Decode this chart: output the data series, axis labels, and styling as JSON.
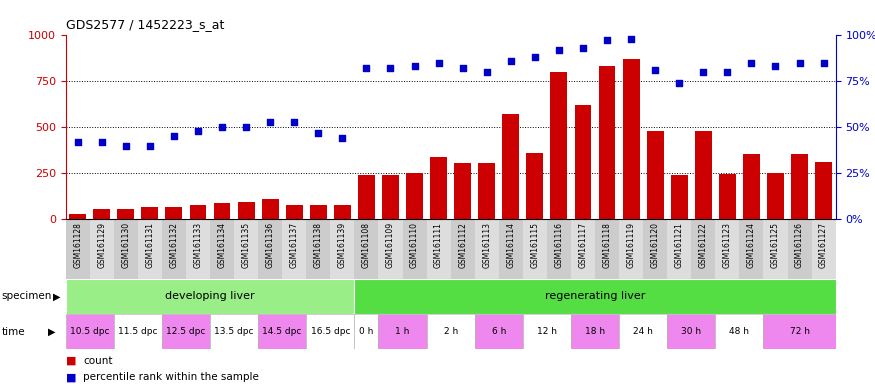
{
  "title": "GDS2577 / 1452223_s_at",
  "samples": [
    "GSM161128",
    "GSM161129",
    "GSM161130",
    "GSM161131",
    "GSM161132",
    "GSM161133",
    "GSM161134",
    "GSM161135",
    "GSM161136",
    "GSM161137",
    "GSM161138",
    "GSM161139",
    "GSM161108",
    "GSM161109",
    "GSM161110",
    "GSM161111",
    "GSM161112",
    "GSM161113",
    "GSM161114",
    "GSM161115",
    "GSM161116",
    "GSM161117",
    "GSM161118",
    "GSM161119",
    "GSM161120",
    "GSM161121",
    "GSM161122",
    "GSM161123",
    "GSM161124",
    "GSM161125",
    "GSM161126",
    "GSM161127"
  ],
  "bar_values": [
    30,
    55,
    55,
    65,
    65,
    80,
    90,
    95,
    110,
    75,
    75,
    75,
    240,
    240,
    250,
    340,
    305,
    305,
    570,
    360,
    800,
    620,
    830,
    870,
    480,
    240,
    480,
    245,
    355,
    250,
    355,
    310
  ],
  "dot_values": [
    42,
    42,
    40,
    40,
    45,
    48,
    50,
    50,
    53,
    53,
    47,
    44,
    82,
    82,
    83,
    85,
    82,
    80,
    86,
    88,
    92,
    93,
    97,
    98,
    81,
    74,
    80,
    80,
    85,
    83,
    85,
    85
  ],
  "bar_color": "#cc0000",
  "dot_color": "#0000cc",
  "ylim_left": [
    0,
    1000
  ],
  "ylim_right": [
    0,
    100
  ],
  "yticks_left": [
    0,
    250,
    500,
    750,
    1000
  ],
  "yticks_right": [
    0,
    25,
    50,
    75,
    100
  ],
  "background_color": "#ffffff",
  "specimen_groups": [
    {
      "label": "developing liver",
      "start": 0,
      "end": 12,
      "color": "#99ee88"
    },
    {
      "label": "regenerating liver",
      "start": 12,
      "end": 32,
      "color": "#55dd44"
    }
  ],
  "time_spans": [
    {
      "label": "10.5 dpc",
      "start": 0,
      "end": 2,
      "color": "#ee88ee"
    },
    {
      "label": "11.5 dpc",
      "start": 2,
      "end": 4,
      "color": "#ffffff"
    },
    {
      "label": "12.5 dpc",
      "start": 4,
      "end": 6,
      "color": "#ee88ee"
    },
    {
      "label": "13.5 dpc",
      "start": 6,
      "end": 8,
      "color": "#ffffff"
    },
    {
      "label": "14.5 dpc",
      "start": 8,
      "end": 10,
      "color": "#ee88ee"
    },
    {
      "label": "16.5 dpc",
      "start": 10,
      "end": 12,
      "color": "#ffffff"
    },
    {
      "label": "0 h",
      "start": 12,
      "end": 13,
      "color": "#ffffff"
    },
    {
      "label": "1 h",
      "start": 13,
      "end": 15,
      "color": "#ee88ee"
    },
    {
      "label": "2 h",
      "start": 15,
      "end": 17,
      "color": "#ffffff"
    },
    {
      "label": "6 h",
      "start": 17,
      "end": 19,
      "color": "#ee88ee"
    },
    {
      "label": "12 h",
      "start": 19,
      "end": 21,
      "color": "#ffffff"
    },
    {
      "label": "18 h",
      "start": 21,
      "end": 23,
      "color": "#ee88ee"
    },
    {
      "label": "24 h",
      "start": 23,
      "end": 25,
      "color": "#ffffff"
    },
    {
      "label": "30 h",
      "start": 25,
      "end": 27,
      "color": "#ee88ee"
    },
    {
      "label": "48 h",
      "start": 27,
      "end": 29,
      "color": "#ffffff"
    },
    {
      "label": "72 h",
      "start": 29,
      "end": 32,
      "color": "#ee88ee"
    }
  ],
  "xtick_bg_even": "#cccccc",
  "xtick_bg_odd": "#dddddd"
}
